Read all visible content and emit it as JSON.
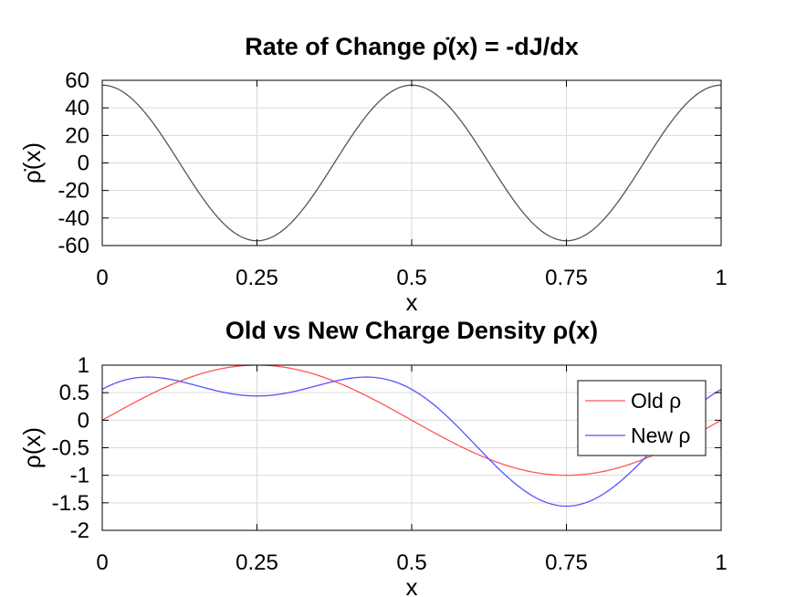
{
  "chart_data": [
    {
      "type": "line",
      "title": "Rate of Change ρ̇(x) = -dJ/dx",
      "xlabel": "x",
      "ylabel": "ρ̇(x)",
      "xlim": [
        0,
        1
      ],
      "ylim": [
        -60,
        60
      ],
      "xticks": [
        0,
        0.25,
        0.5,
        0.75,
        1
      ],
      "xtick_labels": [
        "0",
        "0.25",
        "0.5",
        "0.75",
        "1"
      ],
      "yticks": [
        60,
        40,
        20,
        0,
        -20,
        -40,
        -60
      ],
      "ytick_labels": [
        "60",
        "40",
        "20",
        "0",
        "-20",
        "-40",
        "-60"
      ],
      "grid": true,
      "series": [
        {
          "color": "#555555",
          "x": [
            0,
            0.05,
            0.1,
            0.15,
            0.2,
            0.25,
            0.3,
            0.35,
            0.4,
            0.45,
            0.5,
            0.55,
            0.6,
            0.65,
            0.7,
            0.75,
            0.8,
            0.85,
            0.9,
            0.95,
            1
          ],
          "y": [
            56.5,
            45.7,
            17.5,
            -17.5,
            -45.7,
            -56.5,
            -45.7,
            -17.5,
            17.5,
            45.7,
            56.5,
            45.7,
            17.5,
            -17.5,
            -45.7,
            -56.5,
            -45.7,
            -17.5,
            17.5,
            45.7,
            56.5
          ]
        }
      ]
    },
    {
      "type": "line",
      "title": "Old vs New Charge Density ρ(x)",
      "xlabel": "x",
      "ylabel": "ρ(x)",
      "xlim": [
        0,
        1
      ],
      "ylim": [
        -2,
        1
      ],
      "xticks": [
        0,
        0.25,
        0.5,
        0.75,
        1
      ],
      "xtick_labels": [
        "0",
        "0.25",
        "0.5",
        "0.75",
        "1"
      ],
      "yticks": [
        1,
        0.5,
        0,
        -0.5,
        -1,
        -1.5,
        -2
      ],
      "ytick_labels": [
        "1",
        "0.5",
        "0",
        "-0.5",
        "-1",
        "-1.5",
        "-2"
      ],
      "grid": true,
      "legend_position": "top-right",
      "series": [
        {
          "name": "Old ρ",
          "color": "#ff5555",
          "x": [
            0,
            0.05,
            0.1,
            0.15,
            0.2,
            0.25,
            0.3,
            0.35,
            0.4,
            0.45,
            0.5,
            0.55,
            0.6,
            0.65,
            0.7,
            0.75,
            0.8,
            0.85,
            0.9,
            0.95,
            1
          ],
          "y": [
            0,
            0.31,
            0.59,
            0.81,
            0.95,
            1,
            0.95,
            0.81,
            0.59,
            0.31,
            0,
            -0.31,
            -0.59,
            -0.81,
            -0.95,
            -1,
            -0.95,
            -0.81,
            -0.59,
            -0.31,
            0
          ]
        },
        {
          "name": "New ρ",
          "color": "#5555ff",
          "x": [
            0,
            0.05,
            0.1,
            0.15,
            0.2,
            0.25,
            0.3,
            0.35,
            0.4,
            0.45,
            0.5,
            0.55,
            0.6,
            0.65,
            0.7,
            0.75,
            0.8,
            0.85,
            0.9,
            0.95,
            1
          ],
          "y": [
            0.56,
            0.76,
            0.77,
            0.64,
            0.5,
            0.44,
            0.5,
            0.64,
            0.77,
            0.76,
            0.56,
            0.14,
            -0.42,
            -0.96,
            -1.4,
            -1.57,
            -1.4,
            -0.96,
            -0.42,
            0.14,
            0.56
          ]
        }
      ]
    }
  ]
}
